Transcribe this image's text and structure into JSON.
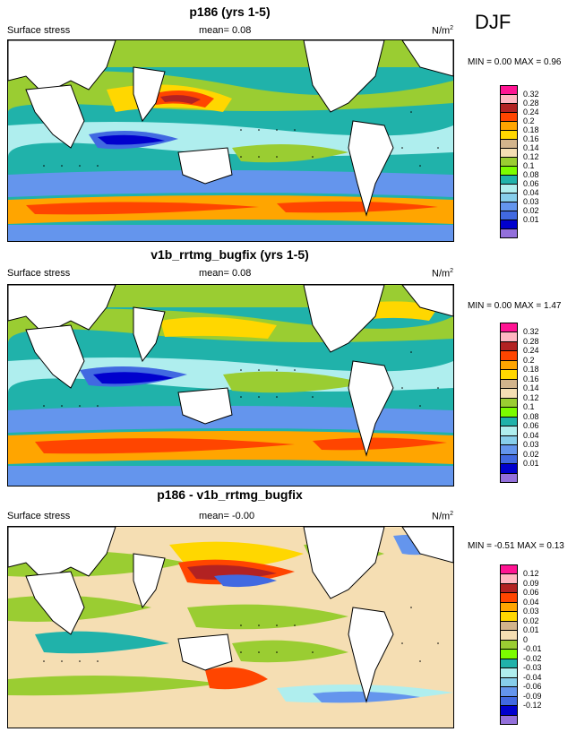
{
  "season": "DJF",
  "panels": [
    {
      "title": "p186 (yrs 1-5)",
      "variable": "Surface stress",
      "mean_text": "mean=  0.08",
      "units_text": "N/m",
      "units_sup": "2",
      "minmax_text": "MIN =  0.00 MAX =  0.96",
      "colorbar": {
        "labels": [
          "0.32",
          "0.28",
          "0.24",
          "0.2",
          "0.18",
          "0.16",
          "0.14",
          "0.12",
          "0.1",
          "0.08",
          "0.06",
          "0.04",
          "0.03",
          "0.02",
          "0.01"
        ],
        "colors": [
          "#ff1493",
          "#ffb6c1",
          "#b22222",
          "#ff4500",
          "#ffa500",
          "#ffd700",
          "#d2b48c",
          "#f5deb3",
          "#9acd32",
          "#7cfc00",
          "#20b2aa",
          "#afeeee",
          "#87ceeb",
          "#6495ed",
          "#4169e1",
          "#0000cd",
          "#9370db"
        ]
      }
    },
    {
      "title": "v1b_rrtmg_bugfix (yrs 1-5)",
      "variable": "Surface stress",
      "mean_text": "mean=  0.08",
      "units_text": "N/m",
      "units_sup": "2",
      "minmax_text": "MIN =  0.00 MAX =  1.47",
      "colorbar": {
        "labels": [
          "0.32",
          "0.28",
          "0.24",
          "0.2",
          "0.18",
          "0.16",
          "0.14",
          "0.12",
          "0.1",
          "0.08",
          "0.06",
          "0.04",
          "0.03",
          "0.02",
          "0.01"
        ],
        "colors": [
          "#ff1493",
          "#ffb6c1",
          "#b22222",
          "#ff4500",
          "#ffa500",
          "#ffd700",
          "#d2b48c",
          "#f5deb3",
          "#9acd32",
          "#7cfc00",
          "#20b2aa",
          "#afeeee",
          "#87ceeb",
          "#6495ed",
          "#4169e1",
          "#0000cd",
          "#9370db"
        ]
      }
    },
    {
      "title": "p186 - v1b_rrtmg_bugfix",
      "variable": "Surface stress",
      "mean_text": "mean=  -0.00",
      "units_text": "N/m",
      "units_sup": "2",
      "minmax_text": "MIN = -0.51 MAX =  0.13",
      "colorbar": {
        "labels": [
          "0.12",
          "0.09",
          "0.06",
          "0.04",
          "0.03",
          "0.02",
          "0.01",
          "0",
          "-0.01",
          "-0.02",
          "-0.03",
          "-0.04",
          "-0.06",
          "-0.09",
          "-0.12"
        ],
        "colors": [
          "#ff1493",
          "#ffb6c1",
          "#b22222",
          "#ff4500",
          "#ffa500",
          "#ffd700",
          "#d2b48c",
          "#f5deb3",
          "#9acd32",
          "#7cfc00",
          "#20b2aa",
          "#afeeee",
          "#87ceeb",
          "#6495ed",
          "#4169e1",
          "#0000cd",
          "#9370db"
        ]
      }
    }
  ]
}
